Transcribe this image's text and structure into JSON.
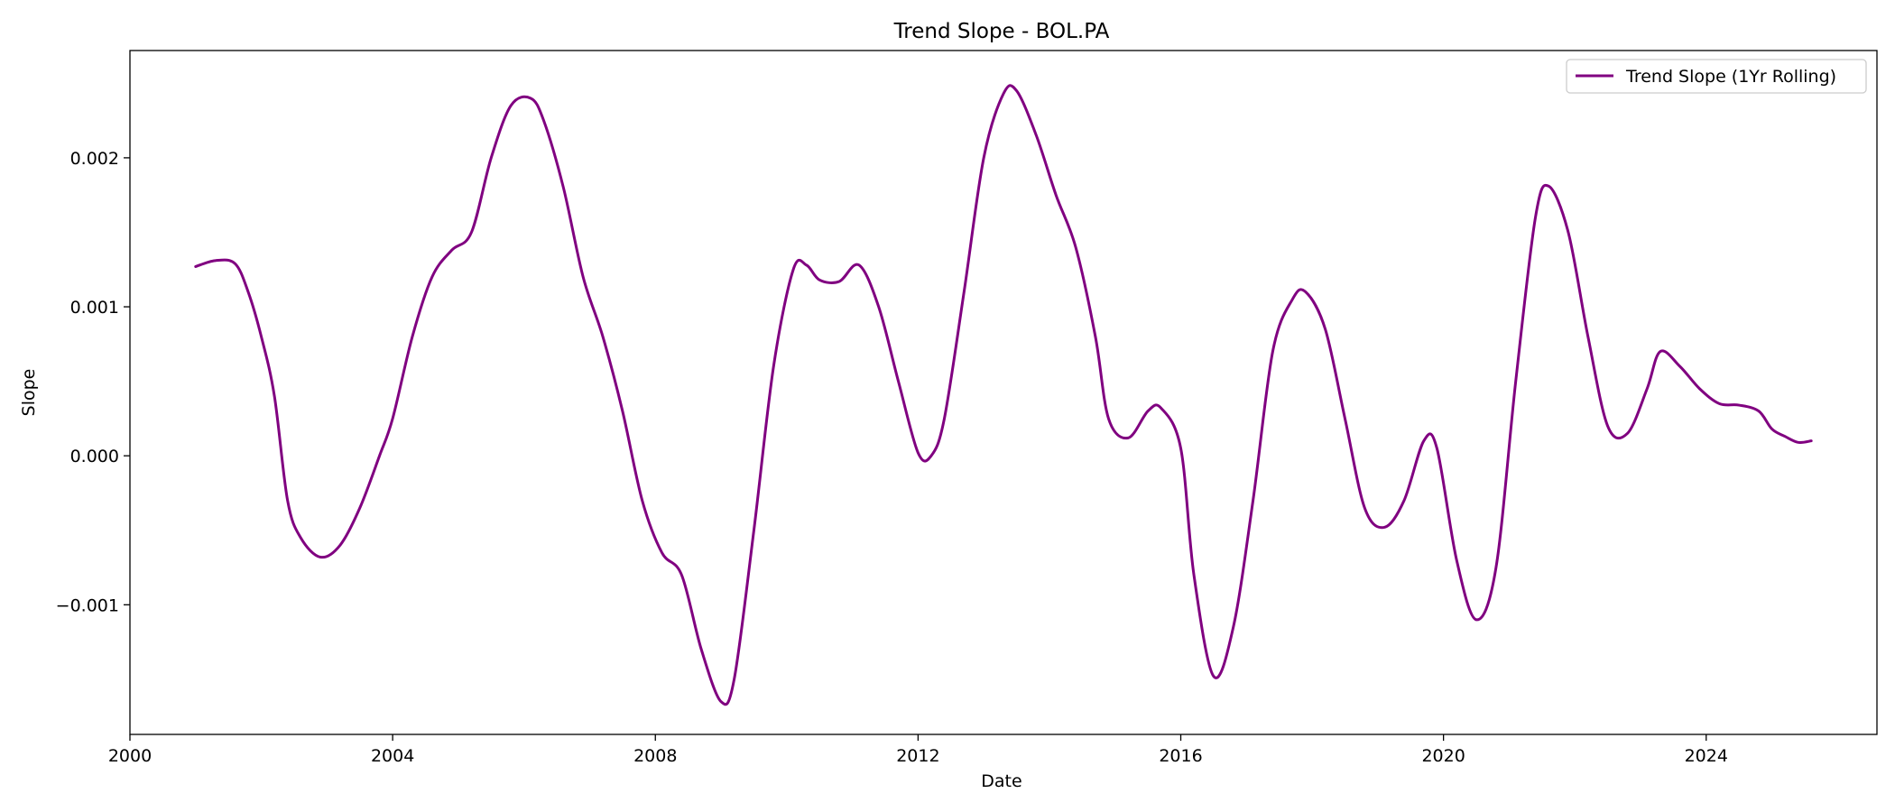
{
  "chart_data": {
    "type": "line",
    "title": "Trend Slope - BOL.PA",
    "xlabel": "Date",
    "ylabel": "Slope",
    "xlim": [
      2000,
      2026.6
    ],
    "ylim": [
      -0.00187,
      0.00272
    ],
    "x_ticks": [
      2000,
      2004,
      2008,
      2012,
      2016,
      2020,
      2024
    ],
    "x_tick_labels": [
      "2000",
      "2004",
      "2008",
      "2012",
      "2016",
      "2020",
      "2024"
    ],
    "y_ticks": [
      -0.001,
      0.0,
      0.001,
      0.002
    ],
    "y_tick_labels": [
      "−0.001",
      "0.000",
      "0.001",
      "0.002"
    ],
    "grid": false,
    "legend": {
      "placement": "top-right"
    },
    "series": [
      {
        "name": "Trend Slope (1Yr Rolling)",
        "color": "#800080",
        "points": [
          [
            2001.0,
            0.00127
          ],
          [
            2001.3,
            0.00131
          ],
          [
            2001.6,
            0.00129
          ],
          [
            2001.8,
            0.0011
          ],
          [
            2002.0,
            0.0008
          ],
          [
            2002.2,
            0.0004
          ],
          [
            2002.4,
            -0.0003
          ],
          [
            2002.6,
            -0.00055
          ],
          [
            2002.9,
            -0.00068
          ],
          [
            2003.2,
            -0.0006
          ],
          [
            2003.5,
            -0.00035
          ],
          [
            2003.8,
            0.0
          ],
          [
            2004.0,
            0.00025
          ],
          [
            2004.3,
            0.0008
          ],
          [
            2004.6,
            0.0012
          ],
          [
            2004.9,
            0.00138
          ],
          [
            2005.2,
            0.0015
          ],
          [
            2005.5,
            0.002
          ],
          [
            2005.8,
            0.00235
          ],
          [
            2006.1,
            0.0024
          ],
          [
            2006.3,
            0.00225
          ],
          [
            2006.6,
            0.0018
          ],
          [
            2006.9,
            0.0012
          ],
          [
            2007.2,
            0.0008
          ],
          [
            2007.5,
            0.0003
          ],
          [
            2007.8,
            -0.0003
          ],
          [
            2008.1,
            -0.00065
          ],
          [
            2008.4,
            -0.0008
          ],
          [
            2008.7,
            -0.0013
          ],
          [
            2009.0,
            -0.00165
          ],
          [
            2009.2,
            -0.0015
          ],
          [
            2009.5,
            -0.0005
          ],
          [
            2009.8,
            0.0006
          ],
          [
            2010.1,
            0.00125
          ],
          [
            2010.3,
            0.00128
          ],
          [
            2010.5,
            0.00118
          ],
          [
            2010.8,
            0.00117
          ],
          [
            2011.1,
            0.00128
          ],
          [
            2011.4,
            0.001
          ],
          [
            2011.7,
            0.0005
          ],
          [
            2012.0,
            2e-05
          ],
          [
            2012.2,
            0.0
          ],
          [
            2012.4,
            0.00025
          ],
          [
            2012.7,
            0.0011
          ],
          [
            2013.0,
            0.002
          ],
          [
            2013.3,
            0.00243
          ],
          [
            2013.5,
            0.00245
          ],
          [
            2013.8,
            0.00215
          ],
          [
            2014.1,
            0.00175
          ],
          [
            2014.4,
            0.0014
          ],
          [
            2014.7,
            0.0008
          ],
          [
            2014.9,
            0.00025
          ],
          [
            2015.2,
            0.00012
          ],
          [
            2015.5,
            0.0003
          ],
          [
            2015.7,
            0.00032
          ],
          [
            2016.0,
            5e-05
          ],
          [
            2016.2,
            -0.0008
          ],
          [
            2016.5,
            -0.00148
          ],
          [
            2016.8,
            -0.00115
          ],
          [
            2017.1,
            -0.0003
          ],
          [
            2017.4,
            0.0007
          ],
          [
            2017.7,
            0.00105
          ],
          [
            2017.9,
            0.0011
          ],
          [
            2018.2,
            0.00085
          ],
          [
            2018.5,
            0.00025
          ],
          [
            2018.8,
            -0.00035
          ],
          [
            2019.1,
            -0.00048
          ],
          [
            2019.4,
            -0.0003
          ],
          [
            2019.7,
            0.0001
          ],
          [
            2019.9,
            5e-05
          ],
          [
            2020.2,
            -0.0007
          ],
          [
            2020.5,
            -0.0011
          ],
          [
            2020.8,
            -0.00075
          ],
          [
            2021.1,
            0.0005
          ],
          [
            2021.4,
            0.0016
          ],
          [
            2021.6,
            0.00181
          ],
          [
            2021.9,
            0.0015
          ],
          [
            2022.2,
            0.0008
          ],
          [
            2022.5,
            0.0002
          ],
          [
            2022.8,
            0.00015
          ],
          [
            2023.1,
            0.00045
          ],
          [
            2023.3,
            0.0007
          ],
          [
            2023.6,
            0.0006
          ],
          [
            2023.9,
            0.00045
          ],
          [
            2024.2,
            0.00035
          ],
          [
            2024.5,
            0.00034
          ],
          [
            2024.8,
            0.0003
          ],
          [
            2025.0,
            0.00018
          ],
          [
            2025.2,
            0.00013
          ],
          [
            2025.4,
            9e-05
          ],
          [
            2025.6,
            0.0001
          ]
        ]
      }
    ]
  }
}
